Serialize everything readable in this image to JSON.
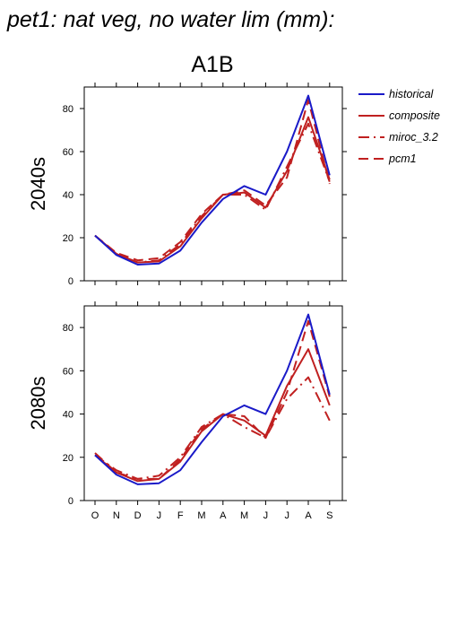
{
  "page": {
    "title": "pet1: nat veg, no water lim (mm):"
  },
  "chart_title": "A1B",
  "legend": {
    "position": "right",
    "entries": [
      {
        "label": "historical",
        "color": "#1a1ac8",
        "dash": "solid"
      },
      {
        "label": "composite",
        "color": "#c02020",
        "dash": "solid"
      },
      {
        "label": "miroc_3.2",
        "color": "#c02020",
        "dash": "dash-dot"
      },
      {
        "label": "pcm1",
        "color": "#c02020",
        "dash": "dash"
      }
    ]
  },
  "chart_data": [
    {
      "type": "line",
      "panel_label": "2040s",
      "categories": [
        "O",
        "N",
        "D",
        "J",
        "F",
        "M",
        "A",
        "M",
        "J",
        "J",
        "A",
        "S"
      ],
      "ylim": [
        0,
        90
      ],
      "yticks": [
        0,
        20,
        40,
        60,
        80
      ],
      "grid": false,
      "series": [
        {
          "name": "historical",
          "values": [
            21,
            12,
            7.5,
            8,
            14,
            27,
            38,
            44,
            40,
            60,
            86,
            49
          ]
        },
        {
          "name": "composite",
          "values": [
            21,
            12.5,
            8.5,
            9,
            16,
            29,
            40,
            41,
            34,
            51,
            76,
            47
          ]
        },
        {
          "name": "miroc_3.2",
          "values": [
            21,
            12.5,
            8.5,
            9.5,
            17,
            30,
            40,
            40,
            33,
            53,
            73,
            46
          ]
        },
        {
          "name": "pcm1",
          "values": [
            21,
            13,
            9.5,
            10.5,
            18,
            31,
            40,
            42,
            35,
            48,
            84,
            45
          ]
        }
      ]
    },
    {
      "type": "line",
      "panel_label": "2080s",
      "categories": [
        "O",
        "N",
        "D",
        "J",
        "F",
        "M",
        "A",
        "M",
        "J",
        "J",
        "A",
        "S"
      ],
      "ylim": [
        0,
        90
      ],
      "yticks": [
        0,
        20,
        40,
        60,
        80
      ],
      "grid": false,
      "series": [
        {
          "name": "historical",
          "values": [
            21,
            12,
            7.5,
            8,
            14,
            27,
            39,
            44,
            40,
            60,
            86,
            49
          ]
        },
        {
          "name": "composite",
          "values": [
            21,
            13,
            9,
            10,
            18,
            32,
            40,
            37,
            30,
            53,
            70,
            44
          ]
        },
        {
          "name": "miroc_3.2",
          "values": [
            21,
            14,
            10,
            11.5,
            20,
            34,
            40,
            34,
            29,
            47,
            57,
            37
          ]
        },
        {
          "name": "pcm1",
          "values": [
            22,
            13,
            10,
            10,
            19,
            33,
            40,
            39,
            29,
            50,
            83,
            48
          ]
        }
      ]
    }
  ]
}
